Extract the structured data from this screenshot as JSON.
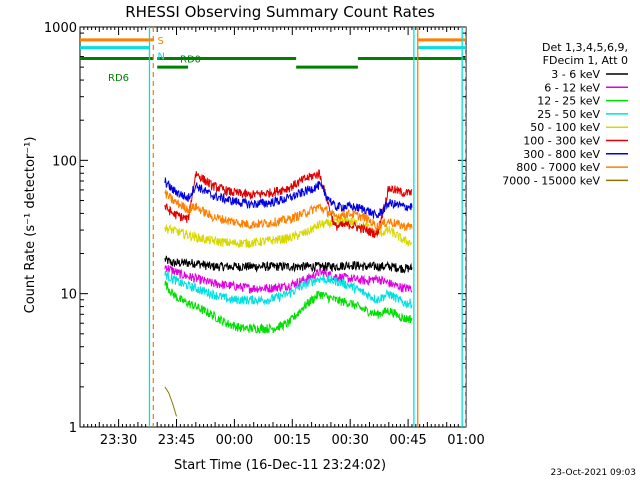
{
  "chart_data": {
    "type": "line",
    "title": "RHESSI Observing Summary Count Rates",
    "xlabel": "Start Time (16-Dec-11 23:24:02)",
    "ylabel": "Count Rate (s⁻¹ detector⁻¹)",
    "x_unit": "minutes",
    "xlim": [
      -4,
      96
    ],
    "ylim": [
      1,
      1000
    ],
    "y_scale": "log",
    "x_ticks": [
      {
        "x": 6,
        "label": "23:30"
      },
      {
        "x": 21,
        "label": "23:45"
      },
      {
        "x": 36,
        "label": "00:00"
      },
      {
        "x": 51,
        "label": "00:15"
      },
      {
        "x": 66,
        "label": "00:30"
      },
      {
        "x": 81,
        "label": "00:45"
      },
      {
        "x": 96,
        "label": "01:00"
      }
    ],
    "y_ticks": [
      {
        "y": 1,
        "label": "1"
      },
      {
        "y": 10,
        "label": "10"
      },
      {
        "y": 100,
        "label": "100"
      },
      {
        "y": 1000,
        "label": "1000"
      }
    ],
    "date_stamp": "23-Oct-2021 09:03",
    "legend": {
      "position": "right",
      "header": [
        "Det 1,3,4,5,6,9,",
        "FDecim 1, Att 0"
      ]
    },
    "series": [
      {
        "name": "3 - 6 keV",
        "color": "#000000",
        "x": [
          18,
          20,
          22,
          24,
          26,
          28,
          30,
          35,
          40,
          45,
          50,
          55,
          58,
          62,
          66,
          70,
          73,
          76,
          80,
          82
        ],
        "y": [
          18,
          17,
          17,
          17,
          17,
          16.5,
          16,
          16,
          16,
          16,
          16,
          16,
          16,
          16,
          16.5,
          16,
          16,
          16,
          15.5,
          15.5
        ]
      },
      {
        "name": "6 - 12 keV",
        "color": "#e000e0",
        "x": [
          18,
          20,
          22,
          26,
          30,
          35,
          40,
          45,
          50,
          55,
          58,
          62,
          66,
          70,
          73,
          76,
          80,
          82
        ],
        "y": [
          16,
          15,
          14,
          13,
          12,
          11.5,
          11,
          11,
          11.5,
          13,
          14.5,
          13.5,
          13,
          12.5,
          13,
          12,
          11,
          11
        ]
      },
      {
        "name": "12 - 25 keV",
        "color": "#00e000",
        "x": [
          18,
          20,
          22,
          26,
          30,
          34,
          38,
          42,
          46,
          50,
          54,
          58,
          62,
          66,
          70,
          73,
          76,
          80,
          82
        ],
        "y": [
          12,
          10,
          9,
          8,
          7,
          6,
          5.5,
          5.5,
          5.5,
          6,
          8,
          10,
          9,
          8.5,
          7.5,
          7,
          7.5,
          6.5,
          6.5
        ]
      },
      {
        "name": "25 - 50 keV",
        "color": "#00e0e0",
        "x": [
          18,
          20,
          22,
          26,
          30,
          35,
          40,
          45,
          50,
          55,
          58,
          62,
          66,
          70,
          73,
          76,
          80,
          82
        ],
        "y": [
          14,
          13,
          12,
          11,
          10,
          9,
          9,
          9,
          10,
          12,
          13,
          12.5,
          11.5,
          10,
          9,
          10,
          8.5,
          8.5
        ]
      },
      {
        "name": "50 - 100 keV",
        "color": "#d8d800",
        "x": [
          18,
          20,
          25,
          30,
          35,
          40,
          45,
          50,
          55,
          58,
          62,
          66,
          70,
          73,
          76,
          80,
          82
        ],
        "y": [
          31,
          30,
          27,
          25,
          24,
          24,
          25,
          26,
          29,
          33,
          34,
          35,
          32,
          28,
          30,
          25,
          24
        ]
      },
      {
        "name": "100 - 300 keV",
        "color": "#e00000",
        "x": [
          18,
          20,
          24,
          26,
          30,
          35,
          40,
          45,
          50,
          54,
          58,
          62,
          66,
          70,
          73,
          76,
          80,
          82
        ],
        "y": [
          45,
          40,
          36,
          80,
          65,
          58,
          55,
          57,
          62,
          72,
          80,
          32,
          33,
          30,
          28,
          62,
          57,
          57
        ]
      },
      {
        "name": "300 - 800 keV",
        "color": "#0000e0",
        "x": [
          18,
          20,
          24,
          26,
          30,
          35,
          40,
          45,
          50,
          54,
          58,
          62,
          66,
          70,
          73,
          76,
          80,
          82
        ],
        "y": [
          70,
          60,
          52,
          65,
          55,
          50,
          47,
          48,
          52,
          58,
          65,
          45,
          45,
          43,
          38,
          48,
          45,
          45
        ]
      },
      {
        "name": "800 - 7000 keV",
        "color": "#ff8000",
        "x": [
          18,
          20,
          24,
          26,
          30,
          35,
          40,
          45,
          50,
          54,
          58,
          62,
          66,
          70,
          73,
          76,
          80,
          82
        ],
        "y": [
          57,
          50,
          43,
          45,
          38,
          35,
          33,
          34,
          36,
          40,
          45,
          38,
          40,
          37,
          32,
          35,
          32,
          32
        ]
      },
      {
        "name": "7000 - 15000 keV",
        "color": "#8b7500",
        "x": [
          18,
          19,
          20,
          21
        ],
        "y": [
          2,
          1.8,
          1.5,
          1.2
        ]
      }
    ],
    "annotations": [
      {
        "text": "S",
        "color": "#ff8000"
      },
      {
        "text": "N",
        "color": "#00e0e0"
      },
      {
        "text": "RD6",
        "color": "#008000"
      },
      {
        "text": "RD0",
        "color": "#008000"
      }
    ],
    "event_bars": {
      "saa": {
        "color": "#ff8000",
        "y_level": 800,
        "spans": [
          [
            -4,
            15
          ],
          [
            83.5,
            96
          ]
        ]
      },
      "night": {
        "color": "#00e0e0",
        "y_level": 700,
        "spans": [
          [
            -4,
            14
          ],
          [
            83.5,
            96
          ]
        ]
      },
      "decimation": {
        "color": "#008000",
        "spans_high": [
          [
            -4,
            15
          ],
          [
            16,
            52
          ],
          [
            68,
            96
          ]
        ],
        "spans_low": [
          [
            16,
            24
          ],
          [
            52,
            68
          ]
        ],
        "y_high": 580,
        "y_low": 500
      }
    },
    "vertical_lines": [
      {
        "x": 14,
        "color": "#00e0e0",
        "style": "solid"
      },
      {
        "x": 15,
        "color": "#ff8000",
        "style": "dashed"
      },
      {
        "x": 82.5,
        "color": "#00e0e0",
        "style": "solid"
      },
      {
        "x": 83.5,
        "color": "#ff8000",
        "style": "solid"
      },
      {
        "x": 95,
        "color": "#00e0e0",
        "style": "solid"
      },
      {
        "x": 96,
        "color": "#ff8000",
        "style": "dashed"
      }
    ]
  }
}
